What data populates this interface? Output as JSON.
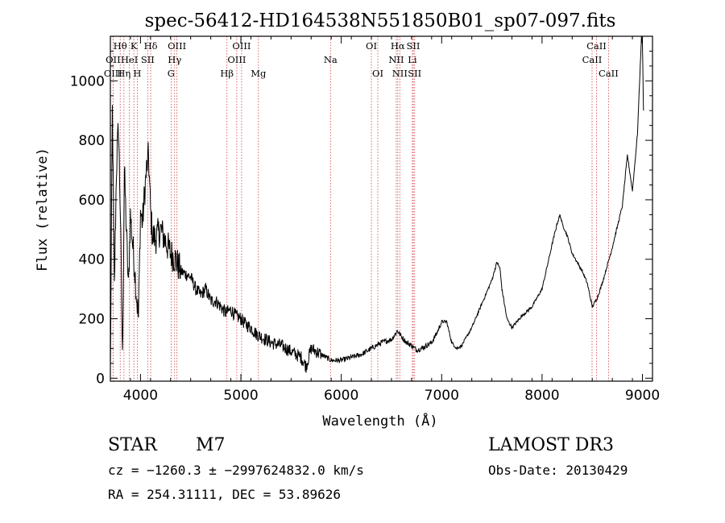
{
  "chart_data": {
    "type": "line",
    "title": "spec-56412-HD164538N551850B01_sp07-097.fits",
    "xlabel": "Wavelength (Å)",
    "ylabel": "Flux (relative)",
    "xlim": [
      3700,
      9100
    ],
    "ylim": [
      -10,
      1150
    ],
    "xticks": [
      4000,
      5000,
      6000,
      7000,
      8000,
      9000
    ],
    "yticks": [
      0,
      200,
      400,
      600,
      800,
      1000
    ],
    "series": [
      {
        "name": "flux",
        "x": [
          3700,
          3720,
          3740,
          3760,
          3780,
          3800,
          3820,
          3840,
          3860,
          3880,
          3900,
          3920,
          3940,
          3960,
          3980,
          4000,
          4020,
          4040,
          4060,
          4080,
          4100,
          4120,
          4150,
          4200,
          4250,
          4300,
          4350,
          4400,
          4450,
          4500,
          4550,
          4600,
          4650,
          4700,
          4750,
          4800,
          4850,
          4900,
          4950,
          5000,
          5050,
          5100,
          5150,
          5200,
          5300,
          5400,
          5500,
          5600,
          5650,
          5700,
          5800,
          5900,
          6000,
          6100,
          6200,
          6300,
          6400,
          6500,
          6560,
          6600,
          6650,
          6700,
          6750,
          6800,
          6900,
          6950,
          7000,
          7050,
          7100,
          7150,
          7200,
          7300,
          7400,
          7500,
          7550,
          7580,
          7600,
          7650,
          7700,
          7750,
          7800,
          7900,
          8000,
          8100,
          8150,
          8180,
          8200,
          8250,
          8300,
          8400,
          8450,
          8500,
          8550,
          8600,
          8700,
          8800,
          8850,
          8900,
          8950,
          8990,
          9000,
          9010
        ],
        "y": [
          20,
          900,
          300,
          700,
          850,
          550,
          60,
          700,
          500,
          300,
          550,
          460,
          380,
          280,
          200,
          560,
          520,
          620,
          700,
          750,
          560,
          480,
          470,
          500,
          460,
          420,
          400,
          360,
          350,
          340,
          300,
          280,
          300,
          260,
          260,
          240,
          220,
          230,
          210,
          200,
          180,
          170,
          150,
          140,
          120,
          110,
          90,
          70,
          40,
          100,
          80,
          60,
          60,
          70,
          80,
          100,
          120,
          130,
          160,
          140,
          120,
          110,
          95,
          100,
          120,
          150,
          190,
          190,
          120,
          100,
          110,
          170,
          250,
          330,
          390,
          370,
          300,
          200,
          170,
          190,
          210,
          240,
          300,
          450,
          520,
          550,
          520,
          480,
          420,
          360,
          320,
          240,
          270,
          320,
          440,
          580,
          750,
          630,
          820,
          1150,
          1120,
          900
        ]
      }
    ],
    "spectral_lines": [
      {
        "label": "Hθ",
        "x": 3798,
        "row": 1
      },
      {
        "label": "K",
        "x": 3934,
        "row": 1
      },
      {
        "label": "Hδ",
        "x": 4102,
        "row": 1
      },
      {
        "label": "OIII",
        "x": 4363,
        "row": 1
      },
      {
        "label": "OIII",
        "x": 5007,
        "row": 1
      },
      {
        "label": "OI",
        "x": 6300,
        "row": 1
      },
      {
        "label": "Hα",
        "x": 6563,
        "row": 1
      },
      {
        "label": "SII",
        "x": 6717,
        "row": 1
      },
      {
        "label": "CaII",
        "x": 8542,
        "row": 1
      },
      {
        "label": "OII",
        "x": 3727,
        "row": 2
      },
      {
        "label": "HeI",
        "x": 3889,
        "row": 2
      },
      {
        "label": "SII",
        "x": 4072,
        "row": 2
      },
      {
        "label": "Hγ",
        "x": 4340,
        "row": 2
      },
      {
        "label": "OIII",
        "x": 4959,
        "row": 2
      },
      {
        "label": "Na",
        "x": 5893,
        "row": 2
      },
      {
        "label": "NII",
        "x": 6548,
        "row": 2
      },
      {
        "label": "Li",
        "x": 6708,
        "row": 2
      },
      {
        "label": "CaII",
        "x": 8498,
        "row": 2
      },
      {
        "label": "OIII",
        "x": 3727,
        "row": 3
      },
      {
        "label": "Hη",
        "x": 3835,
        "row": 3
      },
      {
        "label": "H",
        "x": 3968,
        "row": 3
      },
      {
        "label": "G",
        "x": 4305,
        "row": 3
      },
      {
        "label": "Hβ",
        "x": 4861,
        "row": 3
      },
      {
        "label": "Mg",
        "x": 5175,
        "row": 3
      },
      {
        "label": "OI",
        "x": 6364,
        "row": 3
      },
      {
        "label": "NII",
        "x": 6583,
        "row": 3
      },
      {
        "label": "SII",
        "x": 6731,
        "row": 3
      },
      {
        "label": "CaII",
        "x": 8662,
        "row": 3
      }
    ]
  },
  "info": {
    "object_class": "STAR",
    "subclass": "M7",
    "survey": "LAMOST DR3",
    "redshift_line": "cz = −1260.3 ± −2997624832.0 km/s",
    "obs_date": "Obs-Date: 20130429",
    "coords": "RA = 254.31111, DEC =  53.89626"
  }
}
